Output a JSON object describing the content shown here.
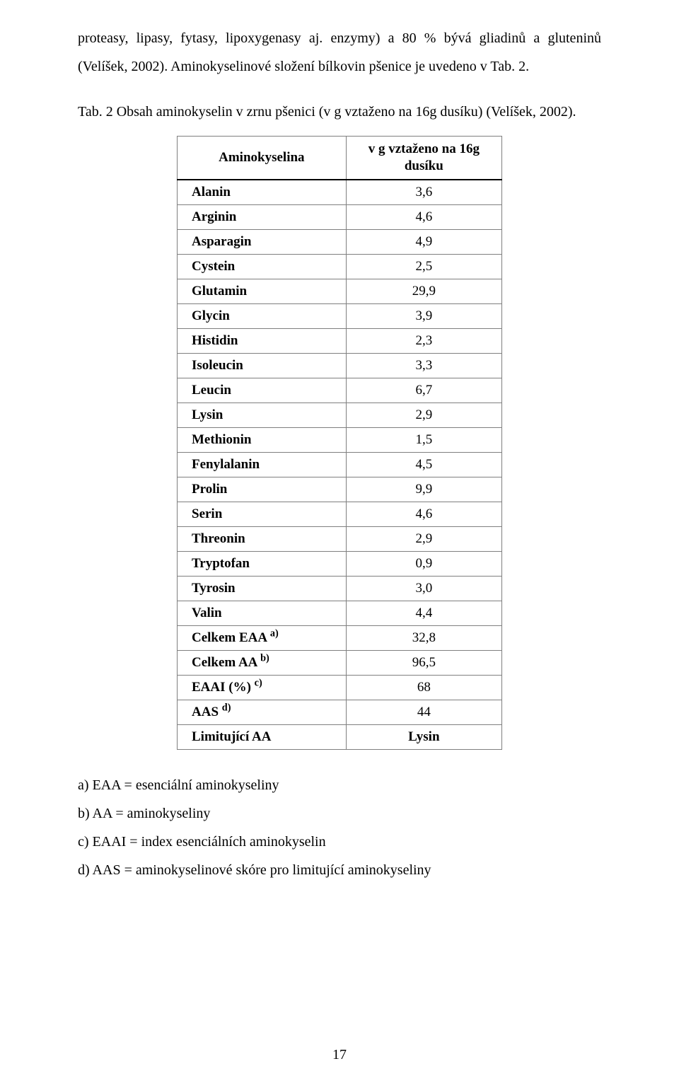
{
  "colors": {
    "border": "#7f7f7f",
    "header_border_bottom": "#000000",
    "text": "#000000",
    "background": "#ffffff"
  },
  "typography": {
    "body_family": "Times New Roman",
    "body_size_pt": 12,
    "line_height": 2.0
  },
  "body_paragraph": "proteasy, lipasy, fytasy, lipoxygenasy aj. enzymy) a 80 % bývá gliadinů a gluteninů (Velíšek, 2002). Aminokyselinové složení bílkovin pšenice je uvedeno v Tab. 2.",
  "table_caption": "Tab. 2 Obsah aminokyselin v zrnu pšenici (v g vztaženo na 16g dusíku) (Velíšek, 2002).",
  "table": {
    "type": "table",
    "header": {
      "col_name": "Aminokyselina",
      "col_value_line1": "v g vztaženo na 16g",
      "col_value_line2": "dusíku"
    },
    "rows": [
      {
        "name": "Alanin",
        "value": "3,6",
        "sup": ""
      },
      {
        "name": "Arginin",
        "value": "4,6",
        "sup": ""
      },
      {
        "name": "Asparagin",
        "value": "4,9",
        "sup": ""
      },
      {
        "name": "Cystein",
        "value": "2,5",
        "sup": ""
      },
      {
        "name": "Glutamin",
        "value": "29,9",
        "sup": ""
      },
      {
        "name": "Glycin",
        "value": "3,9",
        "sup": ""
      },
      {
        "name": "Histidin",
        "value": "2,3",
        "sup": ""
      },
      {
        "name": "Isoleucin",
        "value": "3,3",
        "sup": ""
      },
      {
        "name": "Leucin",
        "value": "6,7",
        "sup": ""
      },
      {
        "name": "Lysin",
        "value": "2,9",
        "sup": ""
      },
      {
        "name": "Methionin",
        "value": "1,5",
        "sup": ""
      },
      {
        "name": "Fenylalanin",
        "value": "4,5",
        "sup": ""
      },
      {
        "name": "Prolin",
        "value": "9,9",
        "sup": ""
      },
      {
        "name": "Serin",
        "value": "4,6",
        "sup": ""
      },
      {
        "name": "Threonin",
        "value": "2,9",
        "sup": ""
      },
      {
        "name": "Tryptofan",
        "value": "0,9",
        "sup": ""
      },
      {
        "name": "Tyrosin",
        "value": "3,0",
        "sup": ""
      },
      {
        "name": "Valin",
        "value": "4,4",
        "sup": ""
      },
      {
        "name": "Celkem EAA ",
        "value": "32,8",
        "sup": "a)"
      },
      {
        "name": "Celkem AA ",
        "value": "96,5",
        "sup": "b)"
      },
      {
        "name": "EAAI (%) ",
        "value": "68",
        "sup": "c)"
      },
      {
        "name": "AAS ",
        "value": "44",
        "sup": "d)"
      },
      {
        "name": "Limitující AA",
        "value": "Lysin",
        "sup": "",
        "value_bold": true
      }
    ]
  },
  "notes": [
    "a) EAA = esenciální aminokyseliny",
    "b) AA = aminokyseliny",
    "c) EAAI = index esenciálních aminokyselin",
    "d) AAS = aminokyselinové skóre pro limitující aminokyseliny"
  ],
  "page_number": "17"
}
